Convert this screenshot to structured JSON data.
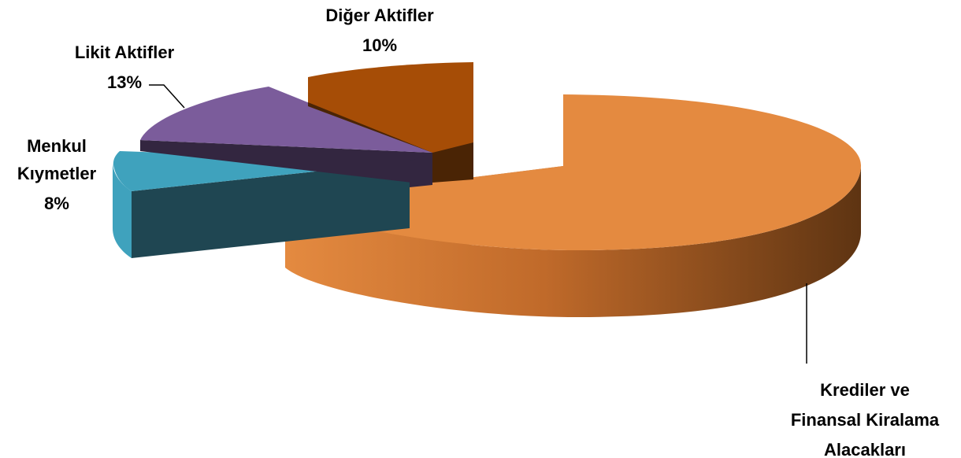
{
  "chart_data": {
    "type": "pie",
    "style": "3d-exploded",
    "slices": [
      {
        "label": [
          "Krediler ve",
          "Finansal Kiralama",
          "Alacakları"
        ],
        "value": 69,
        "value_label": "",
        "color": "#E48A40",
        "side_color": "#6E3D15"
      },
      {
        "label": [
          "Menkul",
          "Kıymetler"
        ],
        "value": 8,
        "value_label": "8%",
        "color": "#3FA2BD",
        "side_color": "#1F4652"
      },
      {
        "label": [
          "Likit Aktifler"
        ],
        "value": 13,
        "value_label": "13%",
        "color": "#7B5C9B",
        "side_color": "#332640"
      },
      {
        "label": [
          "Diğer Aktifler"
        ],
        "value": 10,
        "value_label": "10%",
        "color": "#A64D06",
        "side_color": "#4A2405"
      }
    ]
  }
}
